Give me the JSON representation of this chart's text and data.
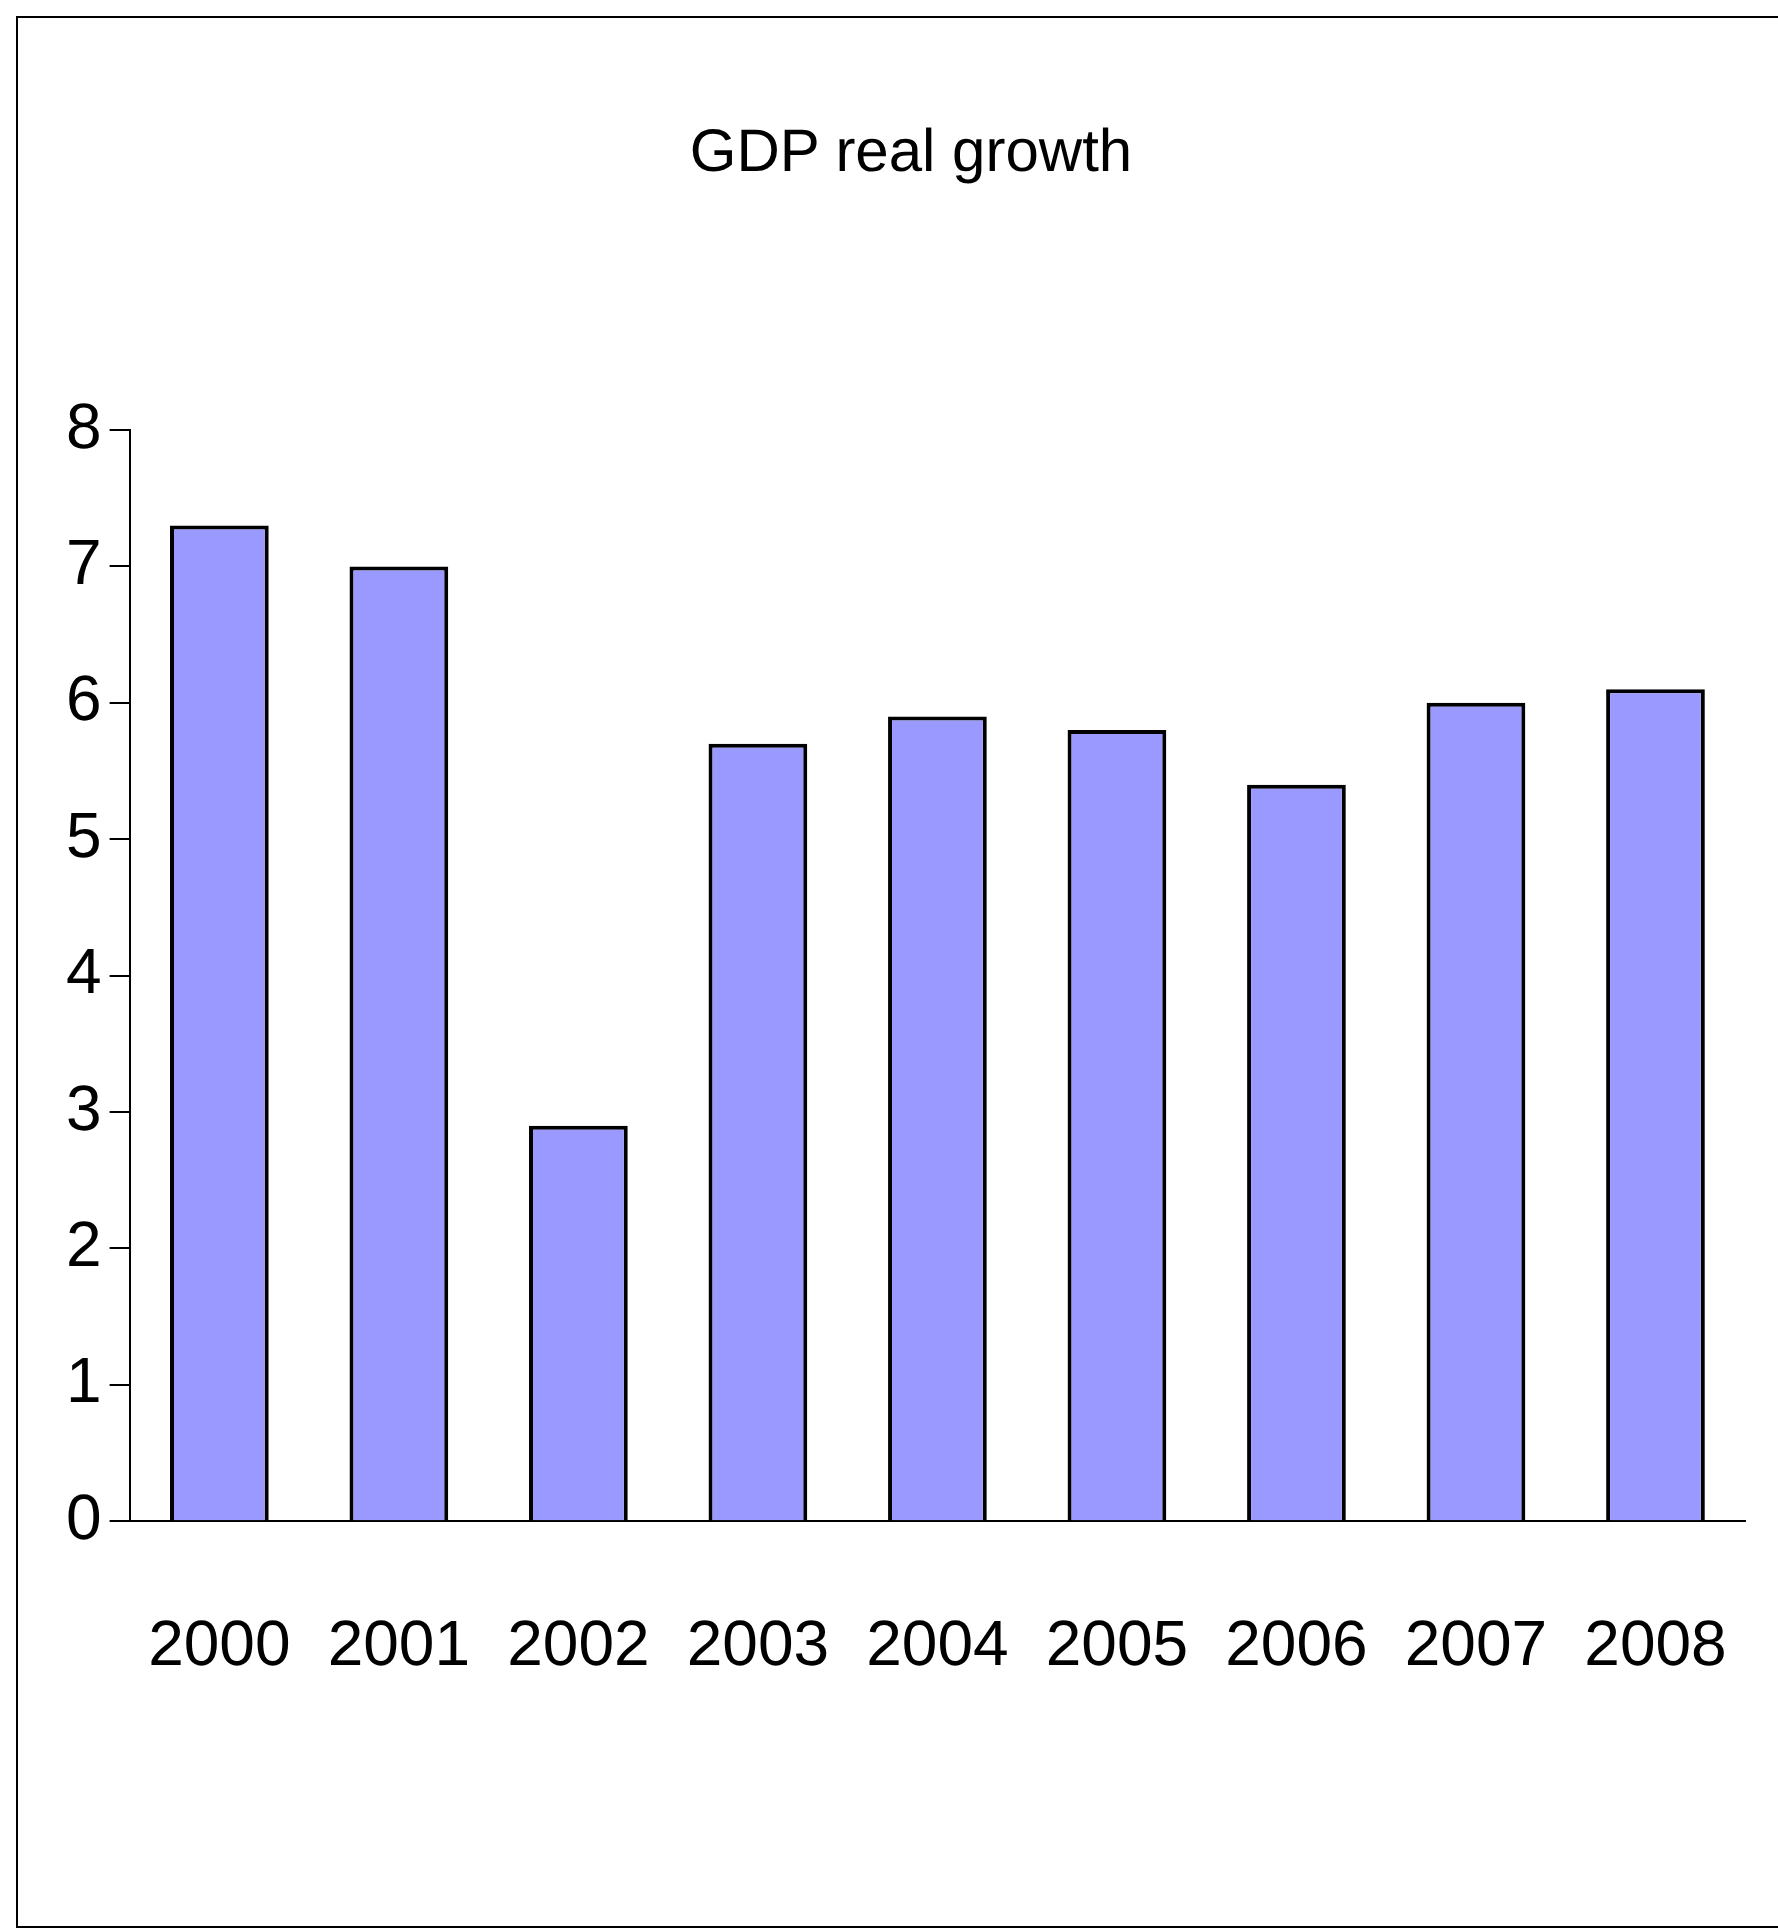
{
  "chart_data": {
    "type": "bar",
    "title": "GDP real growth",
    "categories": [
      "2000",
      "2001",
      "2002",
      "2003",
      "2004",
      "2005",
      "2006",
      "2007",
      "2008"
    ],
    "values": [
      7.3,
      7.0,
      2.9,
      5.7,
      5.9,
      5.8,
      5.4,
      6.0,
      6.1
    ],
    "color": "#9999ff",
    "ylim": [
      0,
      8
    ],
    "yticks": [
      0,
      1,
      2,
      3,
      4,
      5,
      6,
      7,
      8
    ],
    "grid": false,
    "legend": false
  }
}
